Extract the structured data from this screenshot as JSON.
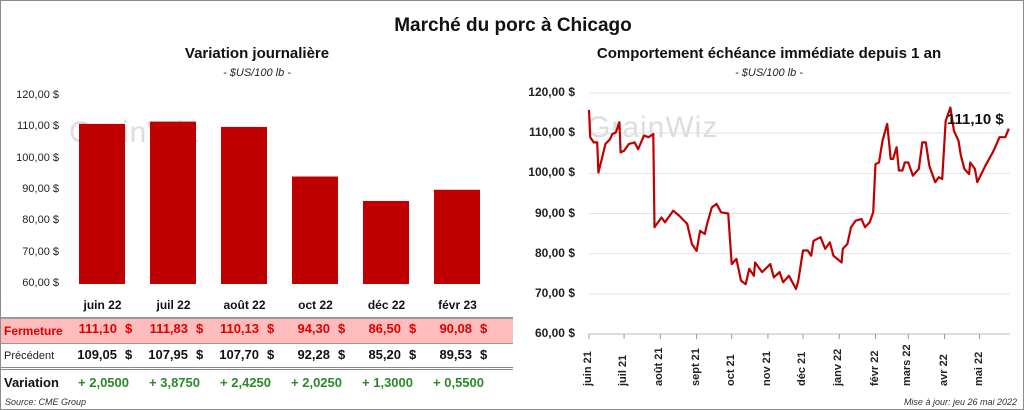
{
  "title": "Marché du porc à Chicago",
  "watermark": "GrainWiz",
  "left": {
    "subtitle": "Variation journalière",
    "unit": "- $US/100 lb -",
    "table": {
      "rows": [
        {
          "label": "Fermeture",
          "values": [
            "111,10",
            "111,83",
            "110,13",
            "94,30",
            "86,50",
            "90,08"
          ],
          "suffix": "$"
        },
        {
          "label": "Précédent",
          "values": [
            "109,05",
            "107,95",
            "107,70",
            "92,28",
            "85,20",
            "89,53"
          ],
          "suffix": "$"
        },
        {
          "label": "Variation",
          "values": [
            "+ 2,0500",
            "+ 3,8750",
            "+ 2,4250",
            "+ 2,0250",
            "+ 1,3000",
            "+ 0,5500"
          ]
        }
      ]
    },
    "source": "Source: CME Group"
  },
  "right": {
    "subtitle": "Comportement échéance immédiate depuis 1 an",
    "unit": "- $US/100 lb -",
    "annotation": "111,10 $",
    "updated": "Mise à jour: jeu 26 mai 2022"
  },
  "colors": {
    "bar": "#c00000",
    "line": "#c00000",
    "fermeture_bg": "#ffbcbc",
    "fermeture_text": "#e00000",
    "variation_text": "#2a8a2a"
  },
  "chart_data": [
    {
      "type": "bar",
      "categories": [
        "juin 22",
        "juil 22",
        "août 22",
        "oct 22",
        "déc 22",
        "févr 23"
      ],
      "values": [
        111.1,
        111.83,
        110.13,
        94.3,
        86.5,
        90.08
      ],
      "ylim": [
        60,
        120
      ],
      "yticks": [
        "60,00 $",
        "70,00 $",
        "80,00 $",
        "90,00 $",
        "100,00 $",
        "110,00 $",
        "120,00 $"
      ],
      "grid": false
    },
    {
      "type": "line",
      "ylim": [
        60,
        120
      ],
      "yticks": [
        "60,00 $",
        "70,00 $",
        "80,00 $",
        "90,00 $",
        "100,00 $",
        "110,00 $",
        "120,00 $"
      ],
      "xticks": [
        "juin 21",
        "juil 21",
        "août 21",
        "sept 21",
        "oct 21",
        "nov 21",
        "déc 21",
        "janv 22",
        "févr 22",
        "mars 22",
        "avr 22",
        "mai 22"
      ],
      "xtick_dates": [
        "2021-06-01",
        "2021-07-01",
        "2021-08-01",
        "2021-09-01",
        "2021-10-01",
        "2021-11-01",
        "2021-12-01",
        "2022-01-01",
        "2022-02-01",
        "2022-03-01",
        "2022-04-01",
        "2022-05-01"
      ],
      "xlim": [
        "2021-06-01",
        "2022-05-27"
      ],
      "grid": true,
      "points": [
        [
          "2021-06-01",
          115.8
        ],
        [
          "2021-06-02",
          109.0
        ],
        [
          "2021-06-05",
          107.7
        ],
        [
          "2021-06-08",
          107.7
        ],
        [
          "2021-06-09",
          100.2
        ],
        [
          "2021-06-13",
          104.8
        ],
        [
          "2021-06-15",
          107.3
        ],
        [
          "2021-06-19",
          108.5
        ],
        [
          "2021-06-21",
          109.8
        ],
        [
          "2021-06-24",
          110.2
        ],
        [
          "2021-06-27",
          112.7
        ],
        [
          "2021-06-28",
          105.2
        ],
        [
          "2021-07-01",
          105.6
        ],
        [
          "2021-07-05",
          107.3
        ],
        [
          "2021-07-10",
          107.7
        ],
        [
          "2021-07-13",
          106.0
        ],
        [
          "2021-07-18",
          109.4
        ],
        [
          "2021-07-22",
          109.0
        ],
        [
          "2021-07-26",
          109.8
        ],
        [
          "2021-07-27",
          86.6
        ],
        [
          "2021-08-02",
          89.0
        ],
        [
          "2021-08-05",
          87.8
        ],
        [
          "2021-08-12",
          90.7
        ],
        [
          "2021-08-17",
          89.5
        ],
        [
          "2021-08-24",
          87.4
        ],
        [
          "2021-08-28",
          82.4
        ],
        [
          "2021-09-01",
          80.7
        ],
        [
          "2021-09-04",
          85.7
        ],
        [
          "2021-09-08",
          84.9
        ],
        [
          "2021-09-10",
          87.4
        ],
        [
          "2021-09-14",
          91.5
        ],
        [
          "2021-09-18",
          92.4
        ],
        [
          "2021-09-22",
          90.3
        ],
        [
          "2021-09-28",
          90.0
        ],
        [
          "2021-10-01",
          77.4
        ],
        [
          "2021-10-05",
          78.7
        ],
        [
          "2021-10-09",
          73.3
        ],
        [
          "2021-10-13",
          72.4
        ],
        [
          "2021-10-16",
          76.2
        ],
        [
          "2021-10-20",
          74.5
        ],
        [
          "2021-10-21",
          77.8
        ],
        [
          "2021-10-27",
          75.4
        ],
        [
          "2021-11-03",
          77.4
        ],
        [
          "2021-11-06",
          74.1
        ],
        [
          "2021-11-11",
          75.4
        ],
        [
          "2021-11-14",
          72.9
        ],
        [
          "2021-11-19",
          74.5
        ],
        [
          "2021-11-25",
          71.2
        ],
        [
          "2021-11-27",
          73.3
        ],
        [
          "2021-12-01",
          80.8
        ],
        [
          "2021-12-05",
          80.8
        ],
        [
          "2021-12-08",
          79.5
        ],
        [
          "2021-12-10",
          83.2
        ],
        [
          "2021-12-16",
          84.1
        ],
        [
          "2021-12-20",
          81.2
        ],
        [
          "2021-12-24",
          82.8
        ],
        [
          "2021-12-27",
          79.5
        ],
        [
          "2022-01-03",
          77.8
        ],
        [
          "2022-01-04",
          81.2
        ],
        [
          "2022-01-08",
          82.4
        ],
        [
          "2022-01-11",
          86.6
        ],
        [
          "2022-01-15",
          88.2
        ],
        [
          "2022-01-20",
          88.6
        ],
        [
          "2022-01-23",
          86.6
        ],
        [
          "2022-01-27",
          87.8
        ],
        [
          "2022-01-30",
          90.3
        ],
        [
          "2022-02-01",
          102.3
        ],
        [
          "2022-02-04",
          102.7
        ],
        [
          "2022-02-07",
          108.1
        ],
        [
          "2022-02-11",
          112.3
        ],
        [
          "2022-02-14",
          103.6
        ],
        [
          "2022-02-16",
          103.6
        ],
        [
          "2022-02-19",
          106.5
        ],
        [
          "2022-02-21",
          100.7
        ],
        [
          "2022-02-24",
          100.7
        ],
        [
          "2022-02-26",
          102.7
        ],
        [
          "2022-03-01",
          102.7
        ],
        [
          "2022-03-05",
          99.4
        ],
        [
          "2022-03-10",
          101.1
        ],
        [
          "2022-03-13",
          107.7
        ],
        [
          "2022-03-16",
          107.7
        ],
        [
          "2022-03-19",
          101.9
        ],
        [
          "2022-03-24",
          97.8
        ],
        [
          "2022-03-27",
          99.0
        ],
        [
          "2022-03-30",
          98.6
        ],
        [
          "2022-04-02",
          113.1
        ],
        [
          "2022-04-06",
          116.4
        ],
        [
          "2022-04-09",
          110.6
        ],
        [
          "2022-04-13",
          108.1
        ],
        [
          "2022-04-15",
          104.4
        ],
        [
          "2022-04-18",
          101.1
        ],
        [
          "2022-04-22",
          99.8
        ],
        [
          "2022-04-23",
          102.7
        ],
        [
          "2022-04-27",
          101.1
        ],
        [
          "2022-04-29",
          97.8
        ],
        [
          "2022-05-06",
          101.9
        ],
        [
          "2022-05-13",
          105.6
        ],
        [
          "2022-05-18",
          109.0
        ],
        [
          "2022-05-23",
          109.0
        ],
        [
          "2022-05-26",
          111.1
        ]
      ]
    }
  ]
}
